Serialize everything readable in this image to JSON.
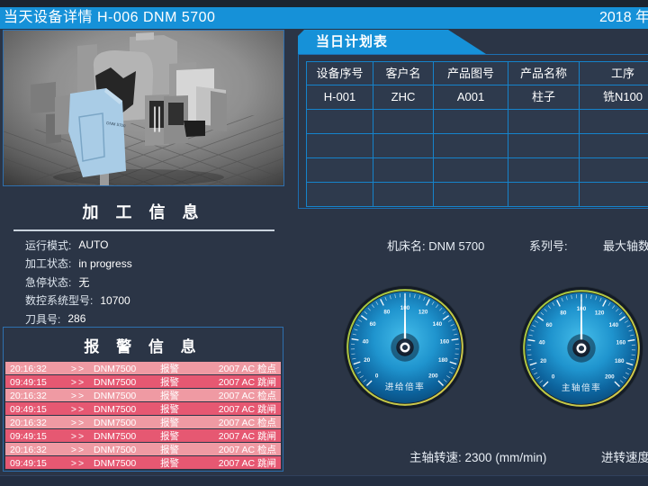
{
  "header": {
    "title": "当天设备详情  H-006   DNM 5700",
    "date": "2018 年"
  },
  "machine_panel": {
    "image_label": "DNM 5700"
  },
  "processing_info": {
    "title": "加 工 信 息",
    "fields": [
      {
        "label": "运行模式:",
        "value": "AUTO"
      },
      {
        "label": "加工状态:",
        "value": "in progress"
      },
      {
        "label": "急停状态:",
        "value": "无"
      },
      {
        "label": "数控系统型号:",
        "value": "10700"
      },
      {
        "label": "刀具号:",
        "value": "286"
      }
    ]
  },
  "alarm_info": {
    "title": "报 警 信 息",
    "rows": [
      {
        "time": "20:16:32",
        "arrow": ">>",
        "device": "DNM7500",
        "type": "报警",
        "code": "2007  AC 检点",
        "severity": "light"
      },
      {
        "time": "09:49:15",
        "arrow": ">>",
        "device": "DNM7500",
        "type": "报警",
        "code": "2007  AC 跳闸",
        "severity": "dark"
      },
      {
        "time": "20:16:32",
        "arrow": ">>",
        "device": "DNM7500",
        "type": "报警",
        "code": "2007  AC 检点",
        "severity": "light"
      },
      {
        "time": "09:49:15",
        "arrow": ">>",
        "device": "DNM7500",
        "type": "报警",
        "code": "2007  AC 跳闸",
        "severity": "dark"
      },
      {
        "time": "20:16:32",
        "arrow": ">>",
        "device": "DNM7500",
        "type": "报警",
        "code": "2007  AC 检点",
        "severity": "light"
      },
      {
        "time": "09:49:15",
        "arrow": ">>",
        "device": "DNM7500",
        "type": "报警",
        "code": "2007  AC 跳闸",
        "severity": "dark"
      },
      {
        "time": "20:16:32",
        "arrow": ">>",
        "device": "DNM7500",
        "type": "报警",
        "code": "2007  AC 检点",
        "severity": "light"
      },
      {
        "time": "09:49:15",
        "arrow": ">>",
        "device": "DNM7500",
        "type": "报警",
        "code": "2007  AC 跳闸",
        "severity": "dark"
      }
    ]
  },
  "plan_table": {
    "tab_title": "当日计划表",
    "columns": [
      "设备序号",
      "客户名",
      "产品图号",
      "产品名称",
      "工序"
    ],
    "rows": [
      [
        "H-001",
        "ZHC",
        "A001",
        "柱子",
        "铣N100"
      ]
    ],
    "empty_row_count": 4
  },
  "machine_meta": {
    "name_label": "机床名:",
    "name_value": "DNM 5700",
    "serial_label": "系列号:",
    "serial_value": "",
    "max_axis_label": "最大轴数"
  },
  "gauges": [
    {
      "label": "进给倍率",
      "min": 0,
      "max": 200,
      "major_step": 20,
      "minor_step": 4,
      "value": 100
    },
    {
      "label": "主轴倍率",
      "min": 0,
      "max": 200,
      "major_step": 20,
      "minor_step": 4,
      "value": 100
    }
  ],
  "footer": {
    "spindle_label": "主轴转速:",
    "spindle_value": "2300",
    "spindle_unit": "(mm/min)",
    "feed_label": "进转速度"
  },
  "colors": {
    "accent_blue": "#1691d8",
    "background": "#2b3546",
    "panel_border": "#2e6fae",
    "table_grid": "#1583cb",
    "alarm_light": "#ef9aa3",
    "alarm_dark": "#e65872",
    "gauge_face_center": "#45bdea",
    "gauge_face_edge": "#094a79",
    "gauge_ring_green": "#9cc63e",
    "gauge_ring_yellow": "#d8c94e"
  }
}
